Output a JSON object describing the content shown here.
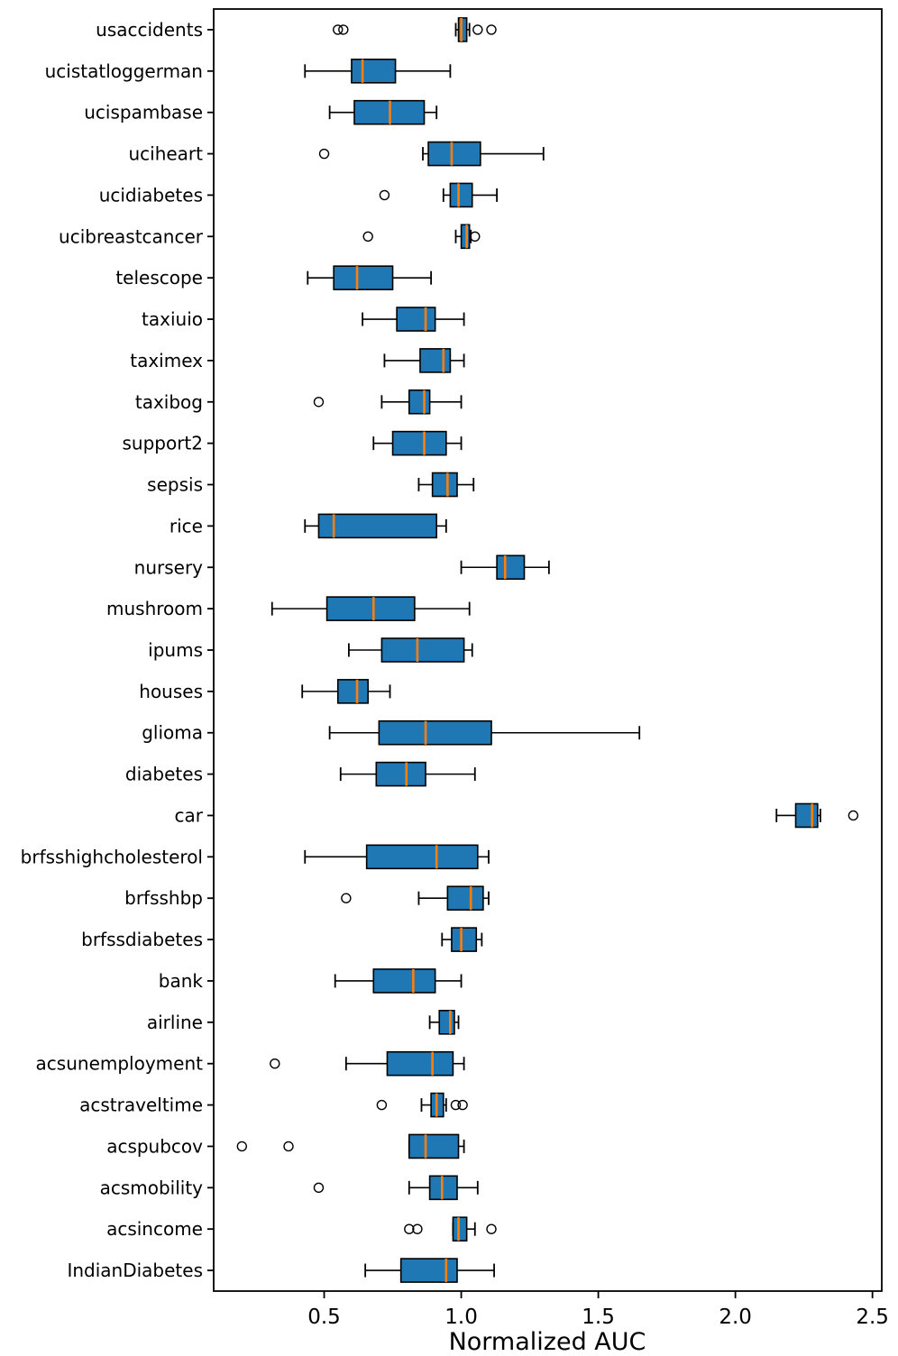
{
  "figure": {
    "background": "#ffffff"
  },
  "chart_data": {
    "type": "boxplot",
    "orientation": "horizontal",
    "title": "",
    "xlabel": "Normalized AUC",
    "ylabel": "",
    "xlim": [
      0.097,
      2.534
    ],
    "x_ticks": [
      0.5,
      1.0,
      1.5,
      2.0,
      2.5
    ],
    "x_tick_labels": [
      "0.5",
      "1.0",
      "1.5",
      "2.0",
      "2.5"
    ],
    "grid": false,
    "legend": null,
    "colors": {
      "box_fill": "#1f77b4",
      "box_edge": "#000000",
      "median": "#ff7f0e",
      "whisker": "#000000",
      "flier_edge": "#000000",
      "axis": "#000000",
      "background": "#ffffff"
    },
    "rows": [
      {
        "name": "usaccidents",
        "whislo": 0.98,
        "q1": 0.99,
        "med": 1.0,
        "q3": 1.02,
        "whishi": 1.03,
        "fliers": [
          0.55,
          0.57,
          1.06,
          1.11
        ]
      },
      {
        "name": "ucistatloggerman",
        "whislo": 0.43,
        "q1": 0.6,
        "med": 0.64,
        "q3": 0.76,
        "whishi": 0.96,
        "fliers": []
      },
      {
        "name": "ucispambase",
        "whislo": 0.52,
        "q1": 0.61,
        "med": 0.74,
        "q3": 0.865,
        "whishi": 0.91,
        "fliers": []
      },
      {
        "name": "uciheart",
        "whislo": 0.86,
        "q1": 0.88,
        "med": 0.965,
        "q3": 1.07,
        "whishi": 1.3,
        "fliers": [
          0.5
        ]
      },
      {
        "name": "ucidiabetes",
        "whislo": 0.935,
        "q1": 0.96,
        "med": 0.99,
        "q3": 1.04,
        "whishi": 1.13,
        "fliers": [
          0.72
        ]
      },
      {
        "name": "ucibreastcancer",
        "whislo": 0.98,
        "q1": 1.0,
        "med": 1.02,
        "q3": 1.03,
        "whishi": 1.035,
        "fliers": [
          0.66,
          1.05
        ]
      },
      {
        "name": "telescope",
        "whislo": 0.44,
        "q1": 0.535,
        "med": 0.62,
        "q3": 0.75,
        "whishi": 0.89,
        "fliers": []
      },
      {
        "name": "taxiuio",
        "whislo": 0.64,
        "q1": 0.765,
        "med": 0.87,
        "q3": 0.905,
        "whishi": 1.01,
        "fliers": []
      },
      {
        "name": "taximex",
        "whislo": 0.72,
        "q1": 0.85,
        "med": 0.935,
        "q3": 0.96,
        "whishi": 1.01,
        "fliers": []
      },
      {
        "name": "taxibog",
        "whislo": 0.71,
        "q1": 0.81,
        "med": 0.865,
        "q3": 0.885,
        "whishi": 1.0,
        "fliers": [
          0.48
        ]
      },
      {
        "name": "support2",
        "whislo": 0.68,
        "q1": 0.75,
        "med": 0.865,
        "q3": 0.945,
        "whishi": 1.0,
        "fliers": []
      },
      {
        "name": "sepsis",
        "whislo": 0.845,
        "q1": 0.895,
        "med": 0.95,
        "q3": 0.985,
        "whishi": 1.045,
        "fliers": []
      },
      {
        "name": "rice",
        "whislo": 0.43,
        "q1": 0.48,
        "med": 0.535,
        "q3": 0.91,
        "whishi": 0.945,
        "fliers": []
      },
      {
        "name": "nursery",
        "whislo": 1.0,
        "q1": 1.13,
        "med": 1.16,
        "q3": 1.23,
        "whishi": 1.32,
        "fliers": []
      },
      {
        "name": "mushroom",
        "whislo": 0.31,
        "q1": 0.51,
        "med": 0.68,
        "q3": 0.83,
        "whishi": 1.03,
        "fliers": []
      },
      {
        "name": "ipums",
        "whislo": 0.59,
        "q1": 0.71,
        "med": 0.84,
        "q3": 1.01,
        "whishi": 1.04,
        "fliers": []
      },
      {
        "name": "houses",
        "whislo": 0.42,
        "q1": 0.55,
        "med": 0.62,
        "q3": 0.66,
        "whishi": 0.74,
        "fliers": []
      },
      {
        "name": "glioma",
        "whislo": 0.52,
        "q1": 0.7,
        "med": 0.87,
        "q3": 1.11,
        "whishi": 1.65,
        "fliers": []
      },
      {
        "name": "diabetes",
        "whislo": 0.56,
        "q1": 0.69,
        "med": 0.8,
        "q3": 0.87,
        "whishi": 1.05,
        "fliers": []
      },
      {
        "name": "car",
        "whislo": 2.15,
        "q1": 2.22,
        "med": 2.28,
        "q3": 2.3,
        "whishi": 2.31,
        "fliers": [
          2.43
        ]
      },
      {
        "name": "brfsshighcholesterol",
        "whislo": 0.43,
        "q1": 0.655,
        "med": 0.91,
        "q3": 1.06,
        "whishi": 1.1,
        "fliers": []
      },
      {
        "name": "brfsshbp",
        "whislo": 0.845,
        "q1": 0.95,
        "med": 1.035,
        "q3": 1.08,
        "whishi": 1.1,
        "fliers": [
          0.58
        ]
      },
      {
        "name": "brfssdiabetes",
        "whislo": 0.93,
        "q1": 0.965,
        "med": 1.0,
        "q3": 1.055,
        "whishi": 1.075,
        "fliers": []
      },
      {
        "name": "bank",
        "whislo": 0.54,
        "q1": 0.68,
        "med": 0.825,
        "q3": 0.905,
        "whishi": 1.0,
        "fliers": []
      },
      {
        "name": "airline",
        "whislo": 0.885,
        "q1": 0.92,
        "med": 0.96,
        "q3": 0.975,
        "whishi": 0.99,
        "fliers": []
      },
      {
        "name": "acsunemployment",
        "whislo": 0.58,
        "q1": 0.73,
        "med": 0.895,
        "q3": 0.97,
        "whishi": 1.01,
        "fliers": [
          0.32
        ]
      },
      {
        "name": "acstraveltime",
        "whislo": 0.855,
        "q1": 0.89,
        "med": 0.91,
        "q3": 0.935,
        "whishi": 0.945,
        "fliers": [
          0.71,
          0.98,
          1.005
        ]
      },
      {
        "name": "acspubcov",
        "whislo": 0.81,
        "q1": 0.81,
        "med": 0.87,
        "q3": 0.99,
        "whishi": 1.01,
        "fliers": [
          0.2,
          0.37
        ]
      },
      {
        "name": "acsmobility",
        "whislo": 0.81,
        "q1": 0.885,
        "med": 0.93,
        "q3": 0.985,
        "whishi": 1.06,
        "fliers": [
          0.48
        ]
      },
      {
        "name": "acsincome",
        "whislo": 0.97,
        "q1": 0.97,
        "med": 0.99,
        "q3": 1.02,
        "whishi": 1.05,
        "fliers": [
          0.81,
          0.84,
          1.11
        ]
      },
      {
        "name": "IndianDiabetes",
        "whislo": 0.65,
        "q1": 0.78,
        "med": 0.945,
        "q3": 0.985,
        "whishi": 1.12,
        "fliers": []
      }
    ]
  }
}
